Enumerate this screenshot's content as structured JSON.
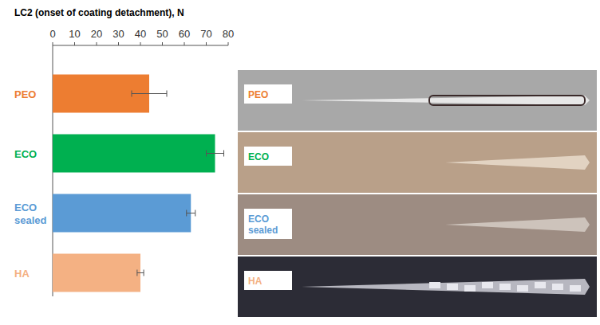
{
  "chart_data": {
    "type": "bar",
    "orientation": "horizontal",
    "title": "LC2 (onset of coating detachment), N",
    "categories": [
      "PEO",
      "ECO",
      "ECO sealed",
      "HA"
    ],
    "values": [
      44,
      74,
      63,
      40
    ],
    "errors": [
      8,
      4,
      2,
      1.5
    ],
    "colors": [
      "#ed7d31",
      "#00b050",
      "#5b9bd5",
      "#f4b183"
    ],
    "xlim": [
      0,
      80
    ],
    "xticks": [
      0,
      10,
      20,
      30,
      40,
      50,
      60,
      70,
      80
    ],
    "grid": false,
    "data_labels": false
  },
  "micrographs": {
    "labels": [
      "PEO",
      "ECO",
      "ECO sealed",
      "HA"
    ]
  }
}
